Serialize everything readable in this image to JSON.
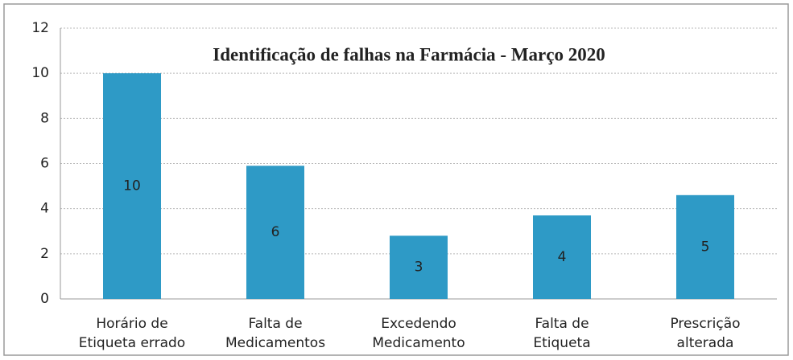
{
  "chart_data": {
    "type": "bar",
    "title": "Identificação de falhas na Farmácia - Março 2020",
    "categories": [
      [
        "Horário de",
        "Etiqueta errado"
      ],
      [
        "Falta de",
        "Medicamentos"
      ],
      [
        "Excedendo",
        "Medicamento"
      ],
      [
        "Falta de",
        "Etiqueta"
      ],
      [
        "Prescrição",
        "alterada"
      ]
    ],
    "values": [
      10,
      5.9,
      2.8,
      3.7,
      4.6
    ],
    "value_labels": [
      "10",
      "6",
      "3",
      "4",
      "5"
    ],
    "color": "#2e9ac6",
    "ylim": [
      0,
      12
    ],
    "yticks": [
      0,
      2,
      4,
      6,
      8,
      10,
      12
    ],
    "grid": true
  }
}
